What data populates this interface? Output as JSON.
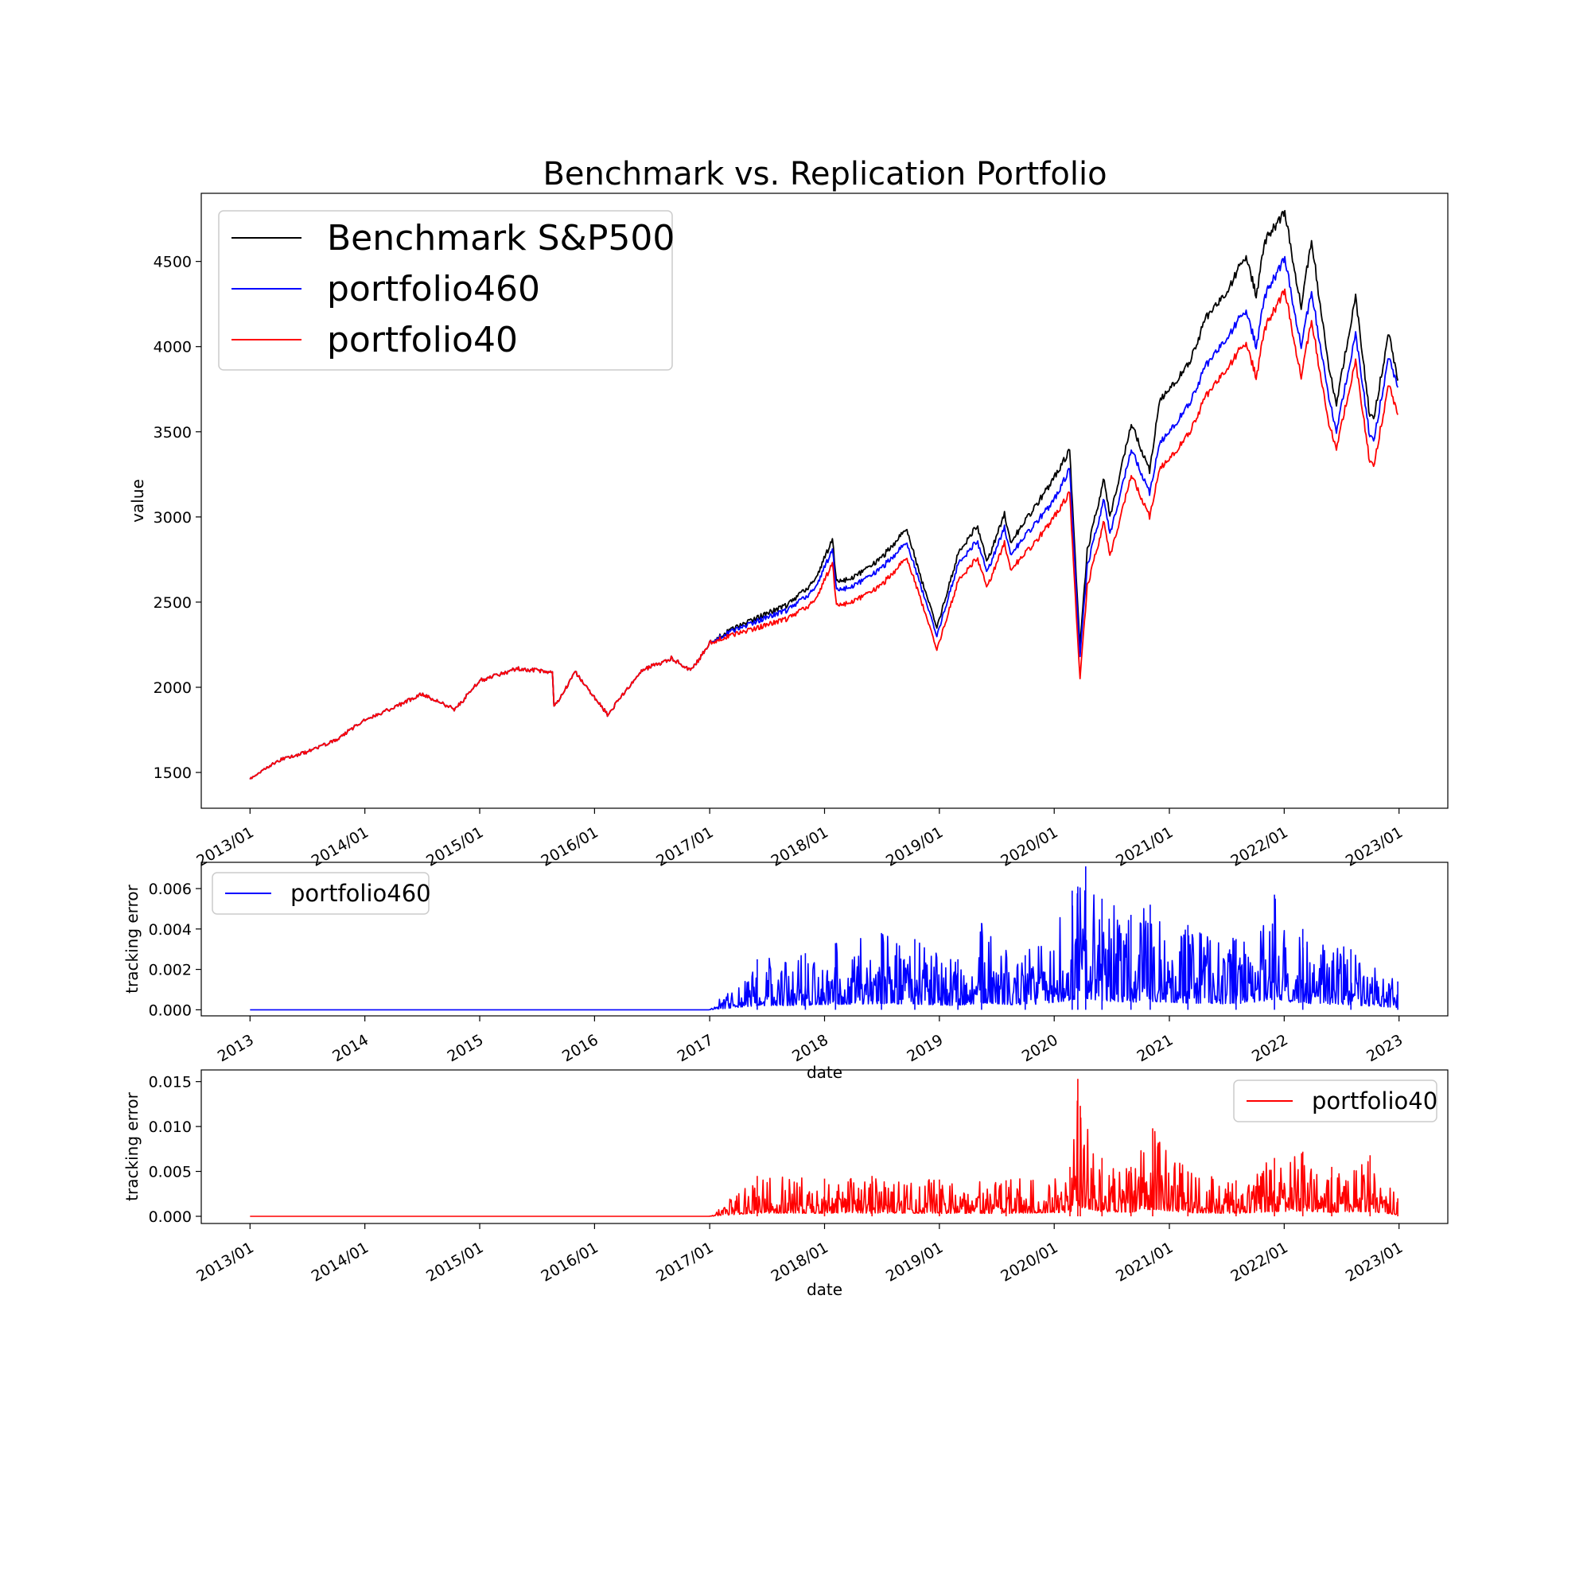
{
  "title": "Benchmark vs. Replication Portfolio",
  "colors": {
    "benchmark": "#000000",
    "p460": "#0000ff",
    "p40": "#ff0000"
  },
  "chart_data": [
    {
      "type": "line",
      "ylabel": "value",
      "xlabel": "",
      "xlim": [
        "2012-07-30",
        "2023-06-05"
      ],
      "ylim": [
        1290,
        4900
      ],
      "grid": false,
      "legend_position": "top-left",
      "xticks": [
        "2013/01",
        "2014/01",
        "2015/01",
        "2016/01",
        "2017/01",
        "2018/01",
        "2019/01",
        "2020/01",
        "2021/01",
        "2022/01",
        "2023/01"
      ],
      "yticks": [
        "1500",
        "2000",
        "2500",
        "3000",
        "3500",
        "4000",
        "4500"
      ],
      "series": [
        {
          "name": "Benchmark S&P500",
          "color": "#000000",
          "x": [
            "2013-01-01",
            "2013-04-01",
            "2013-07-01",
            "2013-10-01",
            "2014-01-01",
            "2014-04-01",
            "2014-07-01",
            "2014-10-15",
            "2015-01-01",
            "2015-05-01",
            "2015-08-20",
            "2015-08-25",
            "2015-11-01",
            "2016-02-11",
            "2016-06-01",
            "2016-09-01",
            "2016-11-04",
            "2017-01-01",
            "2017-03-01",
            "2017-06-01",
            "2017-09-01",
            "2017-12-01",
            "2018-01-26",
            "2018-02-08",
            "2018-04-01",
            "2018-07-01",
            "2018-09-20",
            "2018-10-29",
            "2018-12-24",
            "2019-03-01",
            "2019-04-30",
            "2019-06-03",
            "2019-07-27",
            "2019-08-15",
            "2019-11-01",
            "2020-01-01",
            "2020-02-19",
            "2020-03-23",
            "2020-04-15",
            "2020-06-08",
            "2020-06-26",
            "2020-08-01",
            "2020-09-02",
            "2020-10-30",
            "2020-12-01",
            "2021-01-01",
            "2021-03-01",
            "2021-05-01",
            "2021-07-01",
            "2021-09-02",
            "2021-10-04",
            "2021-11-01",
            "2022-01-03",
            "2022-02-24",
            "2022-03-29",
            "2022-05-20",
            "2022-06-16",
            "2022-08-16",
            "2022-09-30",
            "2022-10-12",
            "2022-11-30",
            "2022-12-28"
          ],
          "y": [
            1460,
            1570,
            1620,
            1690,
            1810,
            1880,
            1960,
            1870,
            2040,
            2110,
            2090,
            1880,
            2090,
            1840,
            2100,
            2170,
            2100,
            2260,
            2330,
            2410,
            2480,
            2620,
            2870,
            2620,
            2640,
            2760,
            2930,
            2670,
            2350,
            2780,
            2950,
            2740,
            3020,
            2850,
            3060,
            3230,
            3390,
            2240,
            2800,
            3230,
            3000,
            3280,
            3550,
            3270,
            3680,
            3750,
            3890,
            4180,
            4320,
            4540,
            4300,
            4620,
            4790,
            4230,
            4630,
            3900,
            3660,
            4300,
            3590,
            3580,
            4080,
            3800
          ]
        },
        {
          "name": "portfolio460",
          "color": "#0000ff",
          "x": [
            "2013-01-01",
            "2013-04-01",
            "2013-07-01",
            "2013-10-01",
            "2014-01-01",
            "2014-04-01",
            "2014-07-01",
            "2014-10-15",
            "2015-01-01",
            "2015-05-01",
            "2015-08-20",
            "2015-08-25",
            "2015-11-01",
            "2016-02-11",
            "2016-06-01",
            "2016-09-01",
            "2016-11-04",
            "2017-01-01",
            "2017-03-01",
            "2017-06-01",
            "2017-09-01",
            "2017-12-01",
            "2018-01-26",
            "2018-02-08",
            "2018-04-01",
            "2018-07-01",
            "2018-09-20",
            "2018-10-29",
            "2018-12-24",
            "2019-03-01",
            "2019-04-30",
            "2019-06-03",
            "2019-07-27",
            "2019-08-15",
            "2019-11-01",
            "2020-01-01",
            "2020-02-19",
            "2020-03-23",
            "2020-04-15",
            "2020-06-08",
            "2020-06-26",
            "2020-08-01",
            "2020-09-02",
            "2020-10-30",
            "2020-12-01",
            "2021-01-01",
            "2021-03-01",
            "2021-05-01",
            "2021-07-01",
            "2021-09-02",
            "2021-10-04",
            "2021-11-01",
            "2022-01-03",
            "2022-02-24",
            "2022-03-29",
            "2022-05-20",
            "2022-06-16",
            "2022-08-16",
            "2022-09-30",
            "2022-10-12",
            "2022-11-30",
            "2022-12-28"
          ],
          "y": [
            1460,
            1570,
            1620,
            1690,
            1810,
            1880,
            1960,
            1870,
            2040,
            2110,
            2090,
            1880,
            2090,
            1840,
            2100,
            2170,
            2100,
            2260,
            2320,
            2390,
            2450,
            2570,
            2810,
            2570,
            2590,
            2700,
            2850,
            2620,
            2300,
            2720,
            2860,
            2680,
            2940,
            2780,
            2960,
            3100,
            3280,
            2180,
            2710,
            3110,
            2900,
            3150,
            3400,
            3140,
            3430,
            3500,
            3650,
            3900,
            4050,
            4220,
            4000,
            4300,
            4520,
            4000,
            4330,
            3720,
            3500,
            4080,
            3470,
            3450,
            3940,
            3760
          ]
        },
        {
          "name": "portfolio40",
          "color": "#ff0000",
          "x": [
            "2013-01-01",
            "2013-04-01",
            "2013-07-01",
            "2013-10-01",
            "2014-01-01",
            "2014-04-01",
            "2014-07-01",
            "2014-10-15",
            "2015-01-01",
            "2015-05-01",
            "2015-08-20",
            "2015-08-25",
            "2015-11-01",
            "2016-02-11",
            "2016-06-01",
            "2016-09-01",
            "2016-11-04",
            "2017-01-01",
            "2017-03-01",
            "2017-06-01",
            "2017-09-01",
            "2017-12-01",
            "2018-01-26",
            "2018-02-08",
            "2018-04-01",
            "2018-07-01",
            "2018-09-20",
            "2018-10-29",
            "2018-12-24",
            "2019-03-01",
            "2019-04-30",
            "2019-06-03",
            "2019-07-27",
            "2019-08-15",
            "2019-11-01",
            "2020-01-01",
            "2020-02-19",
            "2020-03-23",
            "2020-04-15",
            "2020-06-08",
            "2020-06-26",
            "2020-08-01",
            "2020-09-02",
            "2020-10-30",
            "2020-12-01",
            "2021-01-01",
            "2021-03-01",
            "2021-05-01",
            "2021-07-01",
            "2021-09-02",
            "2021-10-04",
            "2021-11-01",
            "2022-01-03",
            "2022-02-24",
            "2022-03-29",
            "2022-05-20",
            "2022-06-16",
            "2022-08-16",
            "2022-09-30",
            "2022-10-12",
            "2022-11-30",
            "2022-12-28"
          ],
          "y": [
            1460,
            1570,
            1620,
            1690,
            1810,
            1880,
            1960,
            1870,
            2040,
            2110,
            2090,
            1880,
            2090,
            1840,
            2100,
            2170,
            2100,
            2260,
            2300,
            2350,
            2400,
            2500,
            2730,
            2480,
            2500,
            2600,
            2760,
            2540,
            2220,
            2620,
            2760,
            2590,
            2850,
            2690,
            2850,
            3000,
            3140,
            2050,
            2590,
            2980,
            2770,
            3010,
            3250,
            3000,
            3280,
            3340,
            3480,
            3720,
            3870,
            4030,
            3820,
            4110,
            4330,
            3820,
            4160,
            3560,
            3400,
            3920,
            3320,
            3300,
            3780,
            3600
          ]
        }
      ]
    },
    {
      "type": "line",
      "ylabel": "tracking error",
      "xlabel": "date",
      "xlim": [
        "2012-07-30",
        "2023-06-05"
      ],
      "ylim": [
        -0.0003,
        0.0073
      ],
      "grid": false,
      "legend_position": "top-left",
      "xticks": [
        "2013",
        "2014",
        "2015",
        "2016",
        "2017",
        "2018",
        "2019",
        "2020",
        "2021",
        "2022",
        "2023"
      ],
      "yticks": [
        "0.000",
        "0.002",
        "0.004",
        "0.006"
      ],
      "series": [
        {
          "name": "portfolio460",
          "color": "#0000ff",
          "x": [
            "2013-01-01",
            "2016-12-30",
            "2017-06-01",
            "2017-11-01",
            "2018-02-05",
            "2018-07-01",
            "2018-10-15",
            "2019-03-01",
            "2019-05-15",
            "2019-10-01",
            "2020-02-27",
            "2020-03-16",
            "2020-04-10",
            "2020-06-01",
            "2020-09-01",
            "2020-11-01",
            "2021-03-01",
            "2021-08-01",
            "2021-12-01",
            "2022-03-01",
            "2022-08-01",
            "2022-12-28"
          ],
          "y": [
            0,
            0,
            0.0025,
            0.0028,
            0.0033,
            0.0038,
            0.0035,
            0.0025,
            0.0043,
            0.0027,
            0.0059,
            0.0061,
            0.0071,
            0.0055,
            0.0047,
            0.0052,
            0.0042,
            0.0035,
            0.0057,
            0.004,
            0.003,
            0.0014
          ]
        }
      ]
    },
    {
      "type": "line",
      "ylabel": "tracking error",
      "xlabel": "date",
      "xlim": [
        "2012-07-30",
        "2023-06-05"
      ],
      "ylim": [
        -0.0008,
        0.0163
      ],
      "grid": false,
      "legend_position": "top-right",
      "xticks": [
        "2013/01",
        "2014/01",
        "2015/01",
        "2016/01",
        "2017/01",
        "2018/01",
        "2019/01",
        "2020/01",
        "2021/01",
        "2022/01",
        "2023/01"
      ],
      "yticks": [
        "0.000",
        "0.005",
        "0.010",
        "0.015"
      ],
      "series": [
        {
          "name": "portfolio40",
          "color": "#ff0000",
          "x": [
            "2013-01-01",
            "2016-12-30",
            "2017-06-01",
            "2018-01-01",
            "2018-06-01",
            "2019-01-01",
            "2019-08-01",
            "2020-02-20",
            "2020-03-16",
            "2020-03-24",
            "2020-06-01",
            "2020-09-01",
            "2020-11-09",
            "2021-03-01",
            "2021-08-01",
            "2021-12-01",
            "2022-03-01",
            "2022-06-01",
            "2022-10-01",
            "2022-12-28"
          ],
          "y": [
            0,
            0,
            0.0045,
            0.0042,
            0.0045,
            0.0041,
            0.004,
            0.0055,
            0.0153,
            0.0123,
            0.0065,
            0.0055,
            0.0098,
            0.005,
            0.004,
            0.0065,
            0.0072,
            0.0055,
            0.0068,
            0.002
          ]
        }
      ]
    }
  ]
}
